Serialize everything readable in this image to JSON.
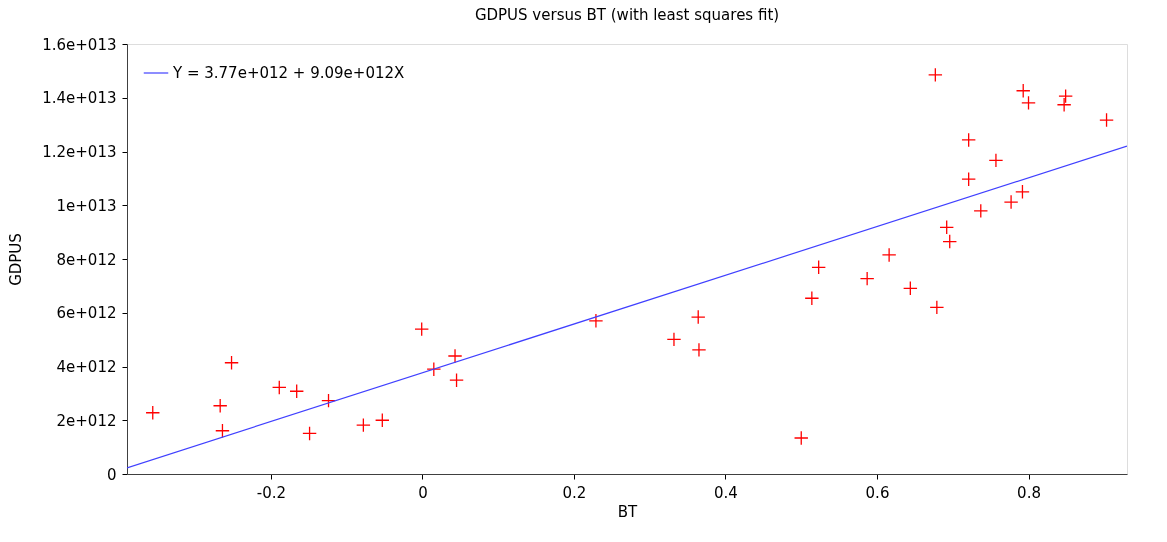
{
  "chart_data": {
    "type": "scatter",
    "title": "GDPUS versus BT (with least squares fit)",
    "xlabel": "BT",
    "ylabel": "GDPUS",
    "xlim": [
      -0.39,
      0.93
    ],
    "xticks": [
      -0.2,
      0,
      0.2,
      0.4,
      0.6,
      0.8
    ],
    "ylim": [
      0,
      16000000000000.0
    ],
    "yticks": [
      0,
      {
        "value": 2000000000000.0,
        "label": "2e+012"
      },
      {
        "value": 4000000000000.0,
        "label": "4e+012"
      },
      {
        "value": 6000000000000.0,
        "label": "6e+012"
      },
      {
        "value": 8000000000000.0,
        "label": "8e+012"
      },
      {
        "value": 10000000000000.0,
        "label": "1e+013"
      },
      {
        "value": 12000000000000.0,
        "label": "1.2e+013"
      },
      {
        "value": 14000000000000.0,
        "label": "1.4e+013"
      },
      {
        "value": 16000000000000.0,
        "label": "1.6e+013"
      }
    ],
    "grid": false,
    "legend": "top left",
    "marker": "cross",
    "series": [
      {
        "color": "#ff0000",
        "x": [
          -0.356,
          -0.267,
          -0.264,
          -0.252,
          -0.189,
          -0.166,
          -0.149,
          -0.124,
          -0.078,
          -0.053,
          -0.001,
          0.015,
          0.043,
          0.045,
          0.229,
          0.332,
          0.364,
          0.365,
          0.5,
          0.514,
          0.523,
          0.587,
          0.616,
          0.644,
          0.677,
          0.679,
          0.692,
          0.696,
          0.721,
          0.721,
          0.737,
          0.757,
          0.777,
          0.792,
          0.793,
          0.8,
          0.847,
          0.849,
          0.903
        ],
        "values": [
          2280000000000.0,
          2540000000000.0,
          1610000000000.0,
          4140000000000.0,
          3220000000000.0,
          3080000000000.0,
          1510000000000.0,
          2730000000000.0,
          1820000000000.0,
          2000000000000.0,
          5390000000000.0,
          3900000000000.0,
          4390000000000.0,
          3490000000000.0,
          5700000000000.0,
          5010000000000.0,
          5840000000000.0,
          4620000000000.0,
          1340000000000.0,
          6540000000000.0,
          7690000000000.0,
          7270000000000.0,
          8150000000000.0,
          6910000000000.0,
          14850000000000.0,
          6200000000000.0,
          9180000000000.0,
          8650000000000.0,
          12430000000000.0,
          10970000000000.0,
          9790000000000.0,
          11670000000000.0,
          10120000000000.0,
          10500000000000.0,
          14260000000000.0,
          13810000000000.0,
          13740000000000.0,
          14060000000000.0,
          13170000000000.0
        ]
      },
      {
        "type": "line",
        "name": "Y = 3.77e+012 + 9.09e+012X",
        "color": "#4040ff",
        "marker": "none",
        "x": [
          -0.39,
          0.93
        ],
        "values": [
          230000000000.0,
          12200000000000.0
        ]
      }
    ]
  }
}
